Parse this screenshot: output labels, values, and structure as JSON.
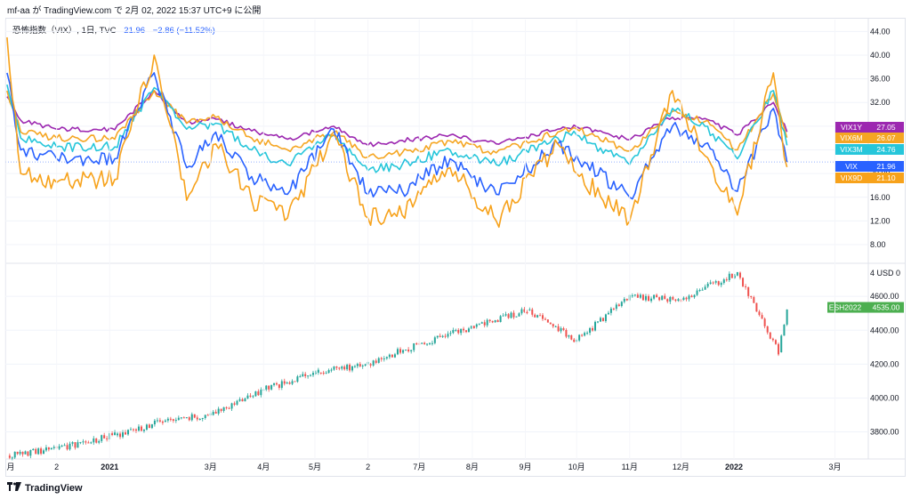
{
  "header": {
    "publish_note": "mf-aa が TradingView.com で 2月 02, 2022 15:37 UTC+9 に公開"
  },
  "legend": {
    "title": "恐怖指数（VIX）, 1日, TVC",
    "last": "21.96",
    "change": "−2.86 (−11.52%)"
  },
  "footer": {
    "brand": "TradingView",
    "logo_icon": "tradingview-logo-icon"
  },
  "colors": {
    "vix": "#2962ff",
    "vix9d": "#f7a21b",
    "vix3m": "#26c6da",
    "vix6m": "#f5a623",
    "vix1y": "#9c27b0",
    "candle_up": "#26a69a",
    "candle_down": "#ef5350",
    "futures_tag": "#4caf50"
  },
  "chart_data": [
    {
      "type": "line",
      "series": [
        {
          "name": "VIX1Y",
          "label_value": "27.05",
          "color": "#9c27b0",
          "x": [
            "2020-11-02",
            "2020-11-10",
            "2020-12-01",
            "2021-01-04",
            "2021-01-27",
            "2021-02-15",
            "2021-03-04",
            "2021-03-25",
            "2021-04-15",
            "2021-05-12",
            "2021-06-01",
            "2021-06-21",
            "2021-07-19",
            "2021-08-15",
            "2021-09-20",
            "2021-10-01",
            "2021-11-01",
            "2021-11-26",
            "2021-12-15",
            "2022-01-03",
            "2022-01-24",
            "2022-02-01"
          ],
          "values": [
            33,
            29,
            27.5,
            27.4,
            34,
            28.5,
            29.2,
            27.2,
            25.8,
            28,
            24.8,
            25.6,
            26.5,
            25,
            27.5,
            27.9,
            25.7,
            29.5,
            29.3,
            26.5,
            32,
            27.05
          ]
        },
        {
          "name": "VIX6M",
          "label_value": "26.07",
          "color": "#f5a623",
          "x": [
            "2020-11-02",
            "2020-11-10",
            "2020-12-01",
            "2021-01-04",
            "2021-01-27",
            "2021-02-15",
            "2021-03-04",
            "2021-03-25",
            "2021-04-15",
            "2021-05-12",
            "2021-06-01",
            "2021-06-21",
            "2021-07-19",
            "2021-08-15",
            "2021-09-20",
            "2021-10-01",
            "2021-11-01",
            "2021-11-26",
            "2021-12-15",
            "2022-01-03",
            "2022-01-24",
            "2022-02-01"
          ],
          "values": [
            34,
            27,
            26,
            25.8,
            34,
            28.5,
            29.5,
            26,
            24,
            27,
            22.8,
            23.5,
            25.5,
            23.5,
            27,
            27.5,
            23.8,
            30.5,
            28.8,
            24,
            33.5,
            26.07
          ]
        },
        {
          "name": "VIX3M",
          "label_value": "24.76",
          "color": "#26c6da",
          "x": [
            "2020-11-02",
            "2020-11-10",
            "2020-12-01",
            "2021-01-04",
            "2021-01-27",
            "2021-02-15",
            "2021-03-04",
            "2021-03-25",
            "2021-04-15",
            "2021-05-12",
            "2021-06-01",
            "2021-06-21",
            "2021-07-19",
            "2021-08-15",
            "2021-09-20",
            "2021-10-01",
            "2021-11-01",
            "2021-11-26",
            "2021-12-15",
            "2022-01-03",
            "2022-01-24",
            "2022-02-01"
          ],
          "values": [
            35,
            26,
            24.5,
            24.5,
            34.5,
            27.5,
            28.5,
            24,
            21.5,
            26.5,
            20.5,
            21.5,
            24,
            21.5,
            26,
            26.5,
            21.5,
            31,
            28,
            22.5,
            34,
            24.76
          ]
        },
        {
          "name": "VIX",
          "label_value": "21.96",
          "color": "#2962ff",
          "x": [
            "2020-11-02",
            "2020-11-10",
            "2020-12-01",
            "2021-01-04",
            "2021-01-27",
            "2021-02-15",
            "2021-03-04",
            "2021-03-25",
            "2021-04-15",
            "2021-05-12",
            "2021-06-01",
            "2021-06-21",
            "2021-07-19",
            "2021-08-15",
            "2021-09-20",
            "2021-10-01",
            "2021-11-01",
            "2021-11-26",
            "2021-12-15",
            "2022-01-03",
            "2022-01-24",
            "2022-02-01"
          ],
          "values": [
            37,
            24,
            22.5,
            22.5,
            37,
            21,
            27,
            19.5,
            16.5,
            27.5,
            16.5,
            17,
            22.5,
            16.5,
            25,
            23,
            16,
            28,
            25,
            17,
            31,
            21.96
          ]
        },
        {
          "name": "VIX9D",
          "label_value": "21.10",
          "color": "#f7a21b",
          "x": [
            "2020-11-02",
            "2020-11-10",
            "2020-12-01",
            "2021-01-04",
            "2021-01-27",
            "2021-02-15",
            "2021-03-04",
            "2021-03-25",
            "2021-04-15",
            "2021-05-12",
            "2021-06-01",
            "2021-06-21",
            "2021-07-19",
            "2021-08-15",
            "2021-09-20",
            "2021-10-01",
            "2021-11-01",
            "2021-11-26",
            "2021-12-15",
            "2022-01-03",
            "2022-01-24",
            "2022-02-01"
          ],
          "values": [
            43,
            20,
            18.5,
            19,
            40,
            15.5,
            25,
            15.5,
            12.5,
            26.5,
            12.5,
            13,
            21,
            12,
            25,
            20,
            12,
            34,
            23,
            13,
            37,
            21.1
          ]
        }
      ],
      "yticks": [
        "44.00",
        "40.00",
        "36.00",
        "32.00",
        "28.00",
        "24.00",
        "20.00",
        "16.00",
        "12.00",
        "8.00"
      ],
      "ylim": [
        5,
        46
      ]
    },
    {
      "type": "candlestick",
      "series": [
        {
          "name": "ESH2022",
          "label_value": "4535.00",
          "x": [
            "2020-11-02",
            "2020-12-01",
            "2021-01-04",
            "2021-02-01",
            "2021-03-01",
            "2021-04-01",
            "2021-05-03",
            "2021-06-01",
            "2021-07-01",
            "2021-08-02",
            "2021-09-02",
            "2021-10-01",
            "2021-11-01",
            "2021-12-01",
            "2022-01-03",
            "2022-01-27",
            "2022-02-01"
          ],
          "values": [
            3660,
            3700,
            3780,
            3860,
            3900,
            4050,
            4150,
            4200,
            4320,
            4420,
            4520,
            4340,
            4600,
            4580,
            4740,
            4270,
            4535
          ]
        }
      ],
      "unit_tag": "USD",
      "unit_scale_tag": "4",
      "yticks": [
        "4600.00",
        "4400.00",
        "4200.00",
        "4000.00",
        "3800.00"
      ],
      "ylim": [
        3640,
        4790
      ]
    }
  ],
  "x_axis": {
    "start": "2020-11-01",
    "end": "2022-03-20",
    "ticks": [
      {
        "date": "2020-11-01",
        "label": "月"
      },
      {
        "date": "2020-12-01",
        "label": "2"
      },
      {
        "date": "2021-01-01",
        "label": "2021"
      },
      {
        "date": "2021-03-01",
        "label": "3月"
      },
      {
        "date": "2021-04-01",
        "label": "4月"
      },
      {
        "date": "2021-05-01",
        "label": "5月"
      },
      {
        "date": "2021-06-01",
        "label": "2"
      },
      {
        "date": "2021-07-01",
        "label": "7月"
      },
      {
        "date": "2021-08-01",
        "label": "8月"
      },
      {
        "date": "2021-09-01",
        "label": "9月"
      },
      {
        "date": "2021-10-01",
        "label": "10月"
      },
      {
        "date": "2021-11-01",
        "label": "11月"
      },
      {
        "date": "2021-12-01",
        "label": "12月"
      },
      {
        "date": "2022-01-01",
        "label": "2022"
      },
      {
        "date": "2022-03-01",
        "label": "3月"
      }
    ]
  }
}
